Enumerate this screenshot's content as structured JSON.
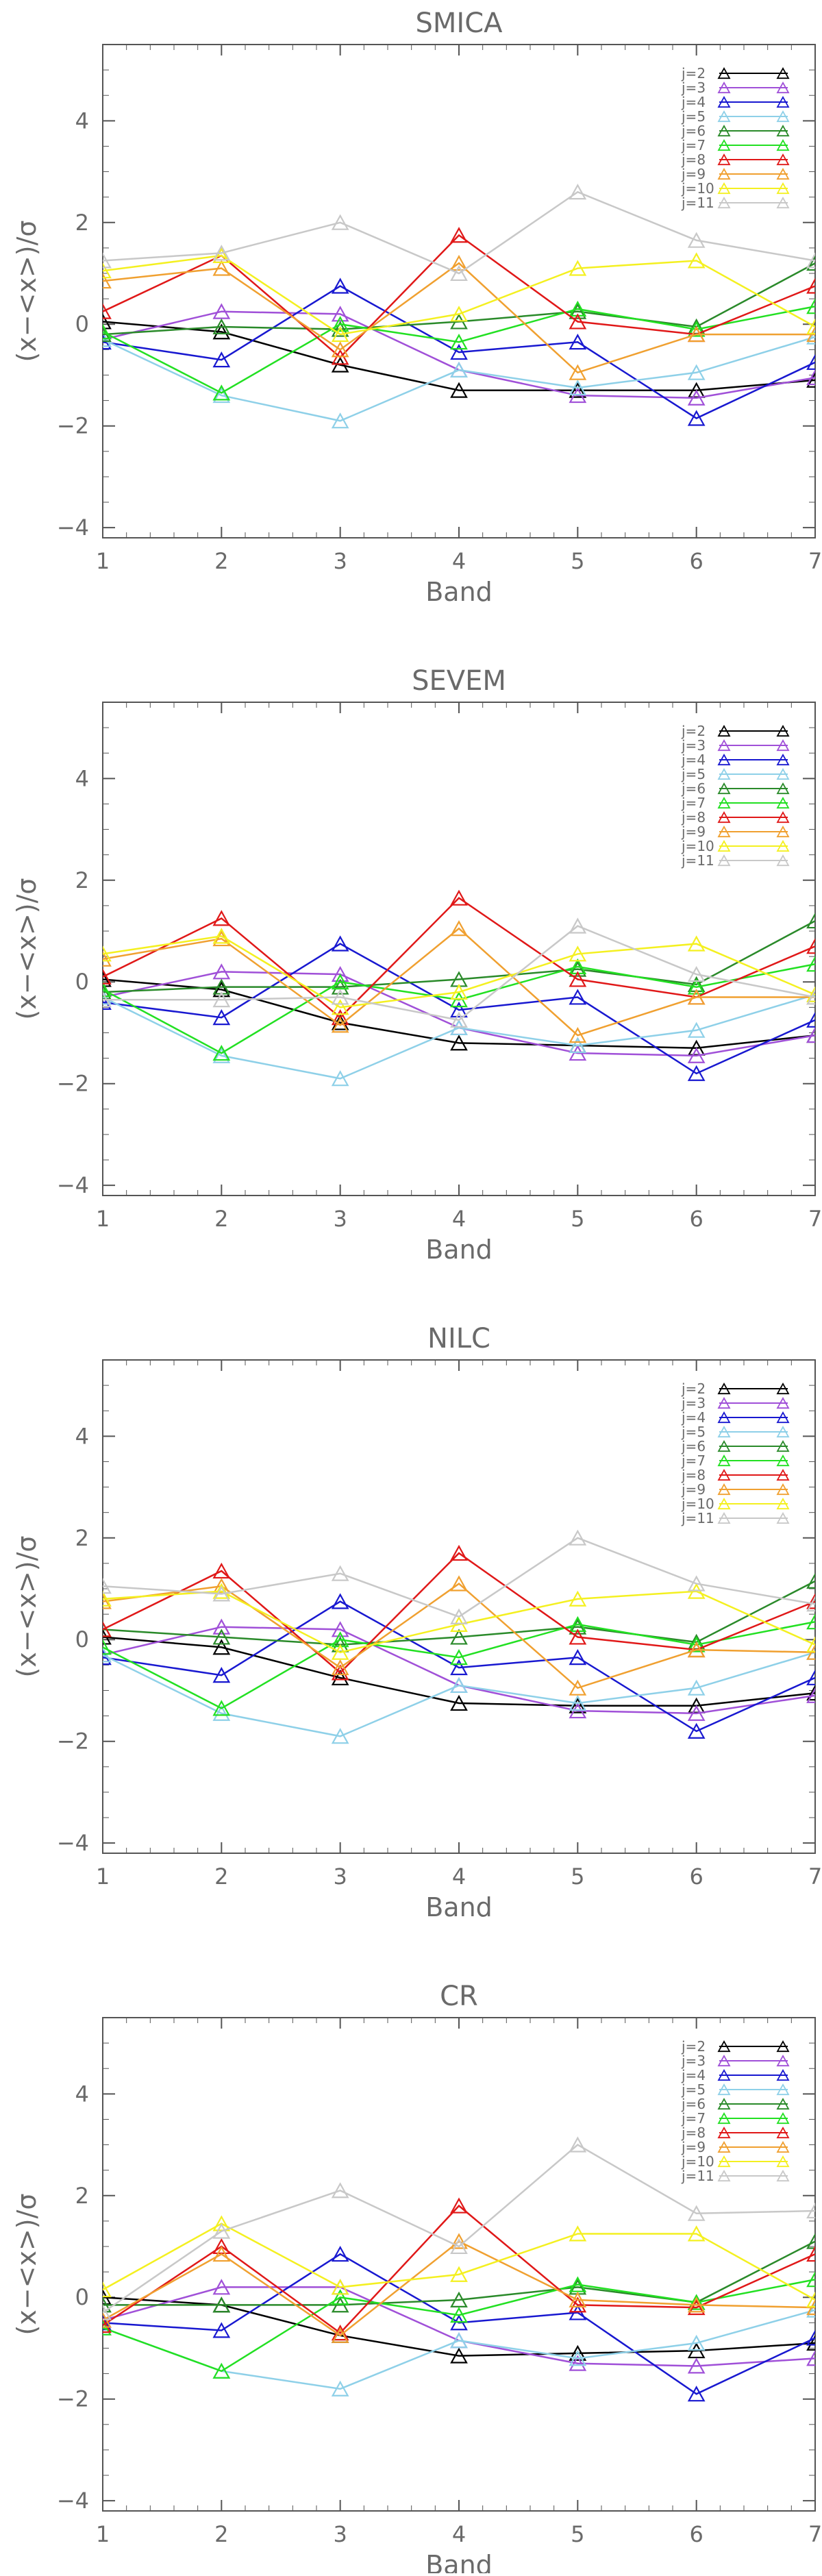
{
  "chart_data": [
    {
      "type": "line",
      "title": "SMICA",
      "xlabel": "Band",
      "ylabel": "(x−<x>)/σ",
      "categories": [
        1,
        2,
        3,
        4,
        5,
        6,
        7
      ],
      "xlim": [
        1,
        7
      ],
      "ylim": [
        -4.2,
        5.5
      ],
      "yticks": [
        -4,
        -2,
        0,
        2,
        4
      ],
      "marker": "triangle",
      "legend_position": "top-right",
      "series": [
        {
          "name": "j=2",
          "color": "#000000",
          "values": [
            0.05,
            -0.15,
            -0.8,
            -1.3,
            -1.3,
            -1.3,
            -1.1
          ]
        },
        {
          "name": "j=3",
          "color": "#a050d8",
          "values": [
            -0.3,
            0.25,
            0.2,
            -0.9,
            -1.4,
            -1.45,
            -1.05
          ]
        },
        {
          "name": "j=4",
          "color": "#1818d0",
          "values": [
            -0.35,
            -0.7,
            0.75,
            -0.55,
            -0.35,
            -1.85,
            -0.75
          ]
        },
        {
          "name": "j=5",
          "color": "#8ed0e8",
          "values": [
            -0.3,
            -1.4,
            -1.9,
            -0.9,
            -1.25,
            -0.95,
            -0.25
          ]
        },
        {
          "name": "j=6",
          "color": "#2a8a2a",
          "values": [
            -0.2,
            -0.05,
            -0.1,
            0.05,
            0.25,
            -0.05,
            1.2
          ]
        },
        {
          "name": "j=7",
          "color": "#22e022",
          "values": [
            -0.15,
            -1.35,
            0.0,
            -0.35,
            0.3,
            -0.1,
            0.35
          ]
        },
        {
          "name": "j=8",
          "color": "#e01818",
          "values": [
            0.25,
            1.35,
            -0.65,
            1.75,
            0.05,
            -0.2,
            0.75
          ]
        },
        {
          "name": "j=9",
          "color": "#f0a030",
          "values": [
            0.85,
            1.1,
            -0.5,
            1.2,
            -0.95,
            -0.2,
            -0.2
          ]
        },
        {
          "name": "j=10",
          "color": "#f4f020",
          "values": [
            1.05,
            1.35,
            -0.2,
            0.2,
            1.1,
            1.25,
            -0.05
          ]
        },
        {
          "name": "j=11",
          "color": "#c8c8c8",
          "values": [
            1.25,
            1.4,
            2.0,
            1.0,
            2.6,
            1.65,
            1.25
          ]
        }
      ]
    },
    {
      "type": "line",
      "title": "SEVEM",
      "xlabel": "Band",
      "ylabel": "(x−<x>)/σ",
      "categories": [
        1,
        2,
        3,
        4,
        5,
        6,
        7
      ],
      "xlim": [
        1,
        7
      ],
      "ylim": [
        -4.2,
        5.5
      ],
      "yticks": [
        -4,
        -2,
        0,
        2,
        4
      ],
      "marker": "triangle",
      "legend_position": "top-right",
      "series": [
        {
          "name": "j=2",
          "color": "#000000",
          "values": [
            0.05,
            -0.15,
            -0.8,
            -1.2,
            -1.25,
            -1.3,
            -1.05
          ]
        },
        {
          "name": "j=3",
          "color": "#a050d8",
          "values": [
            -0.3,
            0.2,
            0.15,
            -0.9,
            -1.4,
            -1.45,
            -1.05
          ]
        },
        {
          "name": "j=4",
          "color": "#1818d0",
          "values": [
            -0.4,
            -0.7,
            0.75,
            -0.55,
            -0.3,
            -1.8,
            -0.75
          ]
        },
        {
          "name": "j=5",
          "color": "#8ed0e8",
          "values": [
            -0.3,
            -1.45,
            -1.9,
            -0.9,
            -1.25,
            -0.95,
            -0.25
          ]
        },
        {
          "name": "j=6",
          "color": "#2a8a2a",
          "values": [
            -0.2,
            -0.1,
            -0.1,
            0.05,
            0.25,
            -0.05,
            1.2
          ]
        },
        {
          "name": "j=7",
          "color": "#22e022",
          "values": [
            -0.15,
            -1.4,
            0.0,
            -0.35,
            0.3,
            -0.1,
            0.35
          ]
        },
        {
          "name": "j=8",
          "color": "#e01818",
          "values": [
            0.1,
            1.25,
            -0.7,
            1.65,
            0.05,
            -0.3,
            0.7
          ]
        },
        {
          "name": "j=9",
          "color": "#f0a030",
          "values": [
            0.45,
            0.85,
            -0.85,
            1.05,
            -1.05,
            -0.3,
            -0.3
          ]
        },
        {
          "name": "j=10",
          "color": "#f4f020",
          "values": [
            0.55,
            0.9,
            -0.5,
            -0.2,
            0.55,
            0.75,
            -0.25
          ]
        },
        {
          "name": "j=11",
          "color": "#c8c8c8",
          "values": [
            -0.35,
            -0.35,
            -0.3,
            -0.75,
            1.1,
            0.15,
            -0.3
          ]
        }
      ]
    },
    {
      "type": "line",
      "title": "NILC",
      "xlabel": "Band",
      "ylabel": "(x−<x>)/σ",
      "categories": [
        1,
        2,
        3,
        4,
        5,
        6,
        7
      ],
      "xlim": [
        1,
        7
      ],
      "ylim": [
        -4.2,
        5.5
      ],
      "yticks": [
        -4,
        -2,
        0,
        2,
        4
      ],
      "marker": "triangle",
      "legend_position": "top-right",
      "series": [
        {
          "name": "j=2",
          "color": "#000000",
          "values": [
            0.05,
            -0.15,
            -0.75,
            -1.25,
            -1.3,
            -1.3,
            -1.05
          ]
        },
        {
          "name": "j=3",
          "color": "#a050d8",
          "values": [
            -0.3,
            0.25,
            0.2,
            -0.9,
            -1.4,
            -1.45,
            -1.1
          ]
        },
        {
          "name": "j=4",
          "color": "#1818d0",
          "values": [
            -0.35,
            -0.7,
            0.75,
            -0.55,
            -0.35,
            -1.8,
            -0.75
          ]
        },
        {
          "name": "j=5",
          "color": "#8ed0e8",
          "values": [
            -0.3,
            -1.45,
            -1.9,
            -0.9,
            -1.25,
            -0.95,
            -0.25
          ]
        },
        {
          "name": "j=6",
          "color": "#2a8a2a",
          "values": [
            0.2,
            0.05,
            -0.1,
            0.05,
            0.25,
            -0.05,
            1.15
          ]
        },
        {
          "name": "j=7",
          "color": "#22e022",
          "values": [
            -0.15,
            -1.35,
            0.0,
            -0.35,
            0.3,
            -0.1,
            0.35
          ]
        },
        {
          "name": "j=8",
          "color": "#e01818",
          "values": [
            0.2,
            1.35,
            -0.65,
            1.7,
            0.05,
            -0.2,
            0.75
          ]
        },
        {
          "name": "j=9",
          "color": "#f0a030",
          "values": [
            0.75,
            1.05,
            -0.55,
            1.1,
            -0.95,
            -0.2,
            -0.25
          ]
        },
        {
          "name": "j=10",
          "color": "#f4f020",
          "values": [
            0.8,
            0.95,
            -0.25,
            0.3,
            0.8,
            0.95,
            -0.1
          ]
        },
        {
          "name": "j=11",
          "color": "#c8c8c8",
          "values": [
            1.05,
            0.9,
            1.3,
            0.45,
            2.0,
            1.1,
            0.7
          ]
        }
      ]
    },
    {
      "type": "line",
      "title": "CR",
      "xlabel": "Band",
      "ylabel": "(x−<x>)/σ",
      "categories": [
        1,
        2,
        3,
        4,
        5,
        6,
        7
      ],
      "xlim": [
        1,
        7
      ],
      "ylim": [
        -4.2,
        5.5
      ],
      "yticks": [
        -4,
        -2,
        0,
        2,
        4
      ],
      "marker": "triangle",
      "legend_position": "top-right",
      "series": [
        {
          "name": "j=2",
          "color": "#000000",
          "values": [
            0.0,
            -0.15,
            -0.75,
            -1.15,
            -1.1,
            -1.05,
            -0.9
          ]
        },
        {
          "name": "j=3",
          "color": "#a050d8",
          "values": [
            -0.45,
            0.2,
            0.2,
            -0.85,
            -1.3,
            -1.35,
            -1.2
          ]
        },
        {
          "name": "j=4",
          "color": "#1818d0",
          "values": [
            -0.5,
            -0.65,
            0.85,
            -0.5,
            -0.3,
            -1.9,
            -0.8
          ]
        },
        {
          "name": "j=5",
          "color": "#8ed0e8",
          "values": [
            -0.6,
            -1.45,
            -1.8,
            -0.85,
            -1.2,
            -0.9,
            -0.25
          ]
        },
        {
          "name": "j=6",
          "color": "#2a8a2a",
          "values": [
            -0.15,
            -0.15,
            -0.15,
            -0.05,
            0.2,
            -0.1,
            1.1
          ]
        },
        {
          "name": "j=7",
          "color": "#22e022",
          "values": [
            -0.6,
            -1.45,
            0.0,
            -0.35,
            0.25,
            -0.1,
            0.35
          ]
        },
        {
          "name": "j=8",
          "color": "#e01818",
          "values": [
            -0.55,
            1.0,
            -0.7,
            1.8,
            -0.15,
            -0.2,
            0.85
          ]
        },
        {
          "name": "j=9",
          "color": "#f0a030",
          "values": [
            -0.45,
            0.85,
            -0.75,
            1.1,
            -0.05,
            -0.15,
            -0.2
          ]
        },
        {
          "name": "j=10",
          "color": "#f4f020",
          "values": [
            0.15,
            1.45,
            0.2,
            0.45,
            1.25,
            1.25,
            -0.05
          ]
        },
        {
          "name": "j=11",
          "color": "#c8c8c8",
          "values": [
            -0.3,
            1.3,
            2.1,
            1.0,
            3.0,
            1.65,
            1.7
          ]
        }
      ]
    }
  ]
}
